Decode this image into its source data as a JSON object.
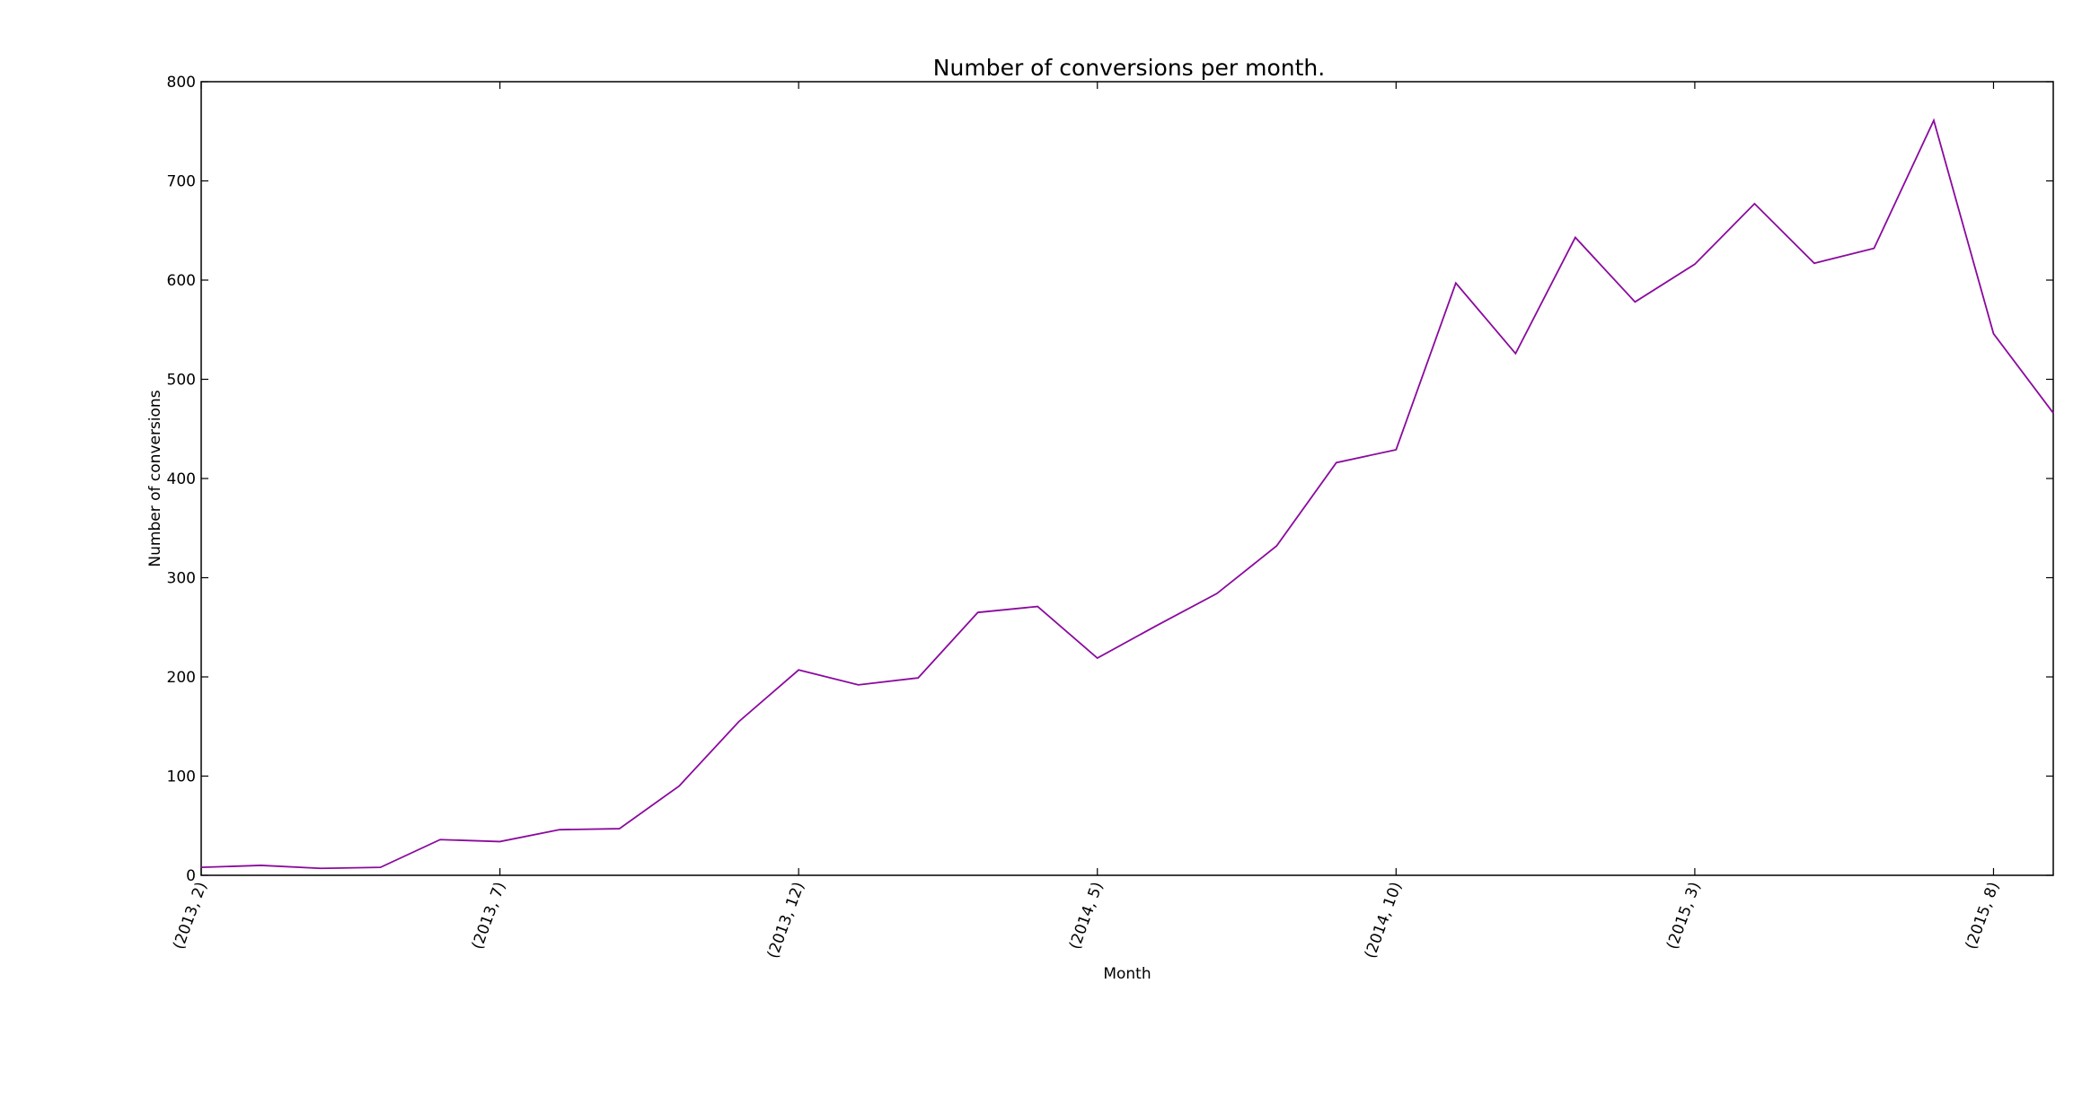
{
  "chart_data": {
    "type": "line",
    "title": "Number of conversions per month.",
    "xlabel": "Month",
    "ylabel": "Number of conversions",
    "ylim": [
      0,
      800
    ],
    "yticks": [
      0,
      100,
      200,
      300,
      400,
      500,
      600,
      700,
      800
    ],
    "xticks": [
      {
        "index": 0,
        "label": "(2013, 2)"
      },
      {
        "index": 5,
        "label": "(2013, 7)"
      },
      {
        "index": 10,
        "label": "(2013, 12)"
      },
      {
        "index": 15,
        "label": "(2014, 5)"
      },
      {
        "index": 20,
        "label": "(2014, 10)"
      },
      {
        "index": 25,
        "label": "(2015, 3)"
      },
      {
        "index": 30,
        "label": "(2015, 8)"
      }
    ],
    "grid": false,
    "line_color": "#8b0a9e",
    "series": [
      {
        "values": [
          8,
          10,
          7,
          8,
          36,
          34,
          46,
          47,
          90,
          155,
          207,
          192,
          199,
          265,
          271,
          219,
          252,
          284,
          332,
          416,
          429,
          597,
          526,
          643,
          578,
          616,
          677,
          617,
          632,
          761,
          546,
          466
        ]
      }
    ]
  }
}
